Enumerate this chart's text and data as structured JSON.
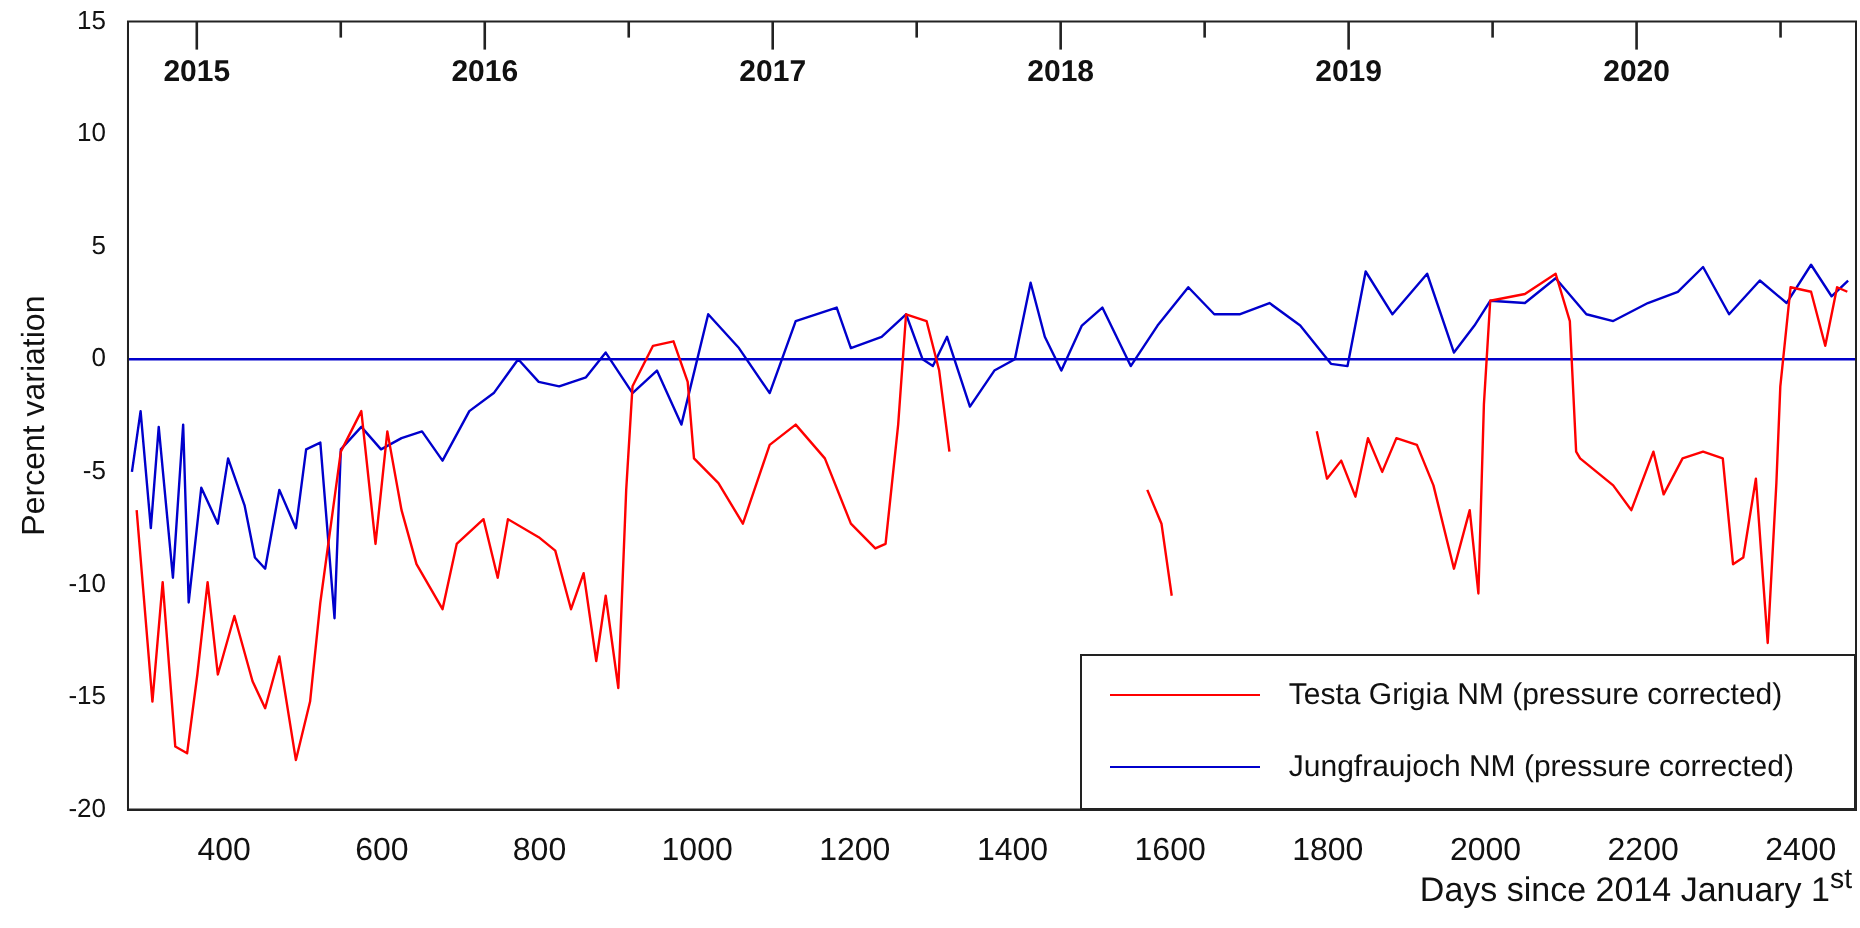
{
  "chart_data": {
    "type": "line",
    "xlabel": "Days since 2014 January 1$^{st}$",
    "ylabel": "Percent variation",
    "xlim": [
      278,
      2470
    ],
    "xticks": [
      400,
      600,
      800,
      1000,
      1200,
      1400,
      1600,
      1800,
      2000,
      2200,
      2400
    ],
    "x2lim": [
      2014.761,
      2020.762
    ],
    "x2ticks": [
      2015,
      {
        "value": 2015.5,
        "label": null
      },
      2016,
      {
        "value": 2016.5,
        "label": null
      },
      2017,
      {
        "value": 2017.5,
        "label": null
      },
      2018,
      {
        "value": 2018.5,
        "label": null
      },
      2019,
      {
        "value": 2019.5,
        "label": null
      },
      2020,
      {
        "value": 2020.5,
        "label": null
      }
    ],
    "ylim": [
      -20,
      15
    ],
    "yticks": [
      -20,
      -15,
      -10,
      -5,
      0,
      5,
      10,
      15
    ],
    "grid": false,
    "legend": "bottom right",
    "marker": "none",
    "line_style": "solid",
    "ref_lines": [
      {
        "axis": "y",
        "value": 0,
        "color": "#0000cc"
      }
    ],
    "series": [
      {
        "name": "Testa Grigia NM (pressure corrected)",
        "color": "#ff0000",
        "x": [
          289,
          309,
          322,
          338,
          353,
          366,
          379,
          392,
          413,
          436,
          452,
          470,
          491,
          509,
          522,
          548,
          574,
          592,
          607,
          625,
          644,
          677,
          695,
          729,
          747,
          760,
          799,
          820,
          840,
          856,
          872,
          884,
          900,
          910,
          918,
          944,
          970,
          988,
          996,
          1027,
          1058,
          1092,
          1125,
          1162,
          1195,
          1226,
          1239,
          1255,
          1265,
          1291,
          1307,
          1320,
          1450,
          1571,
          1589,
          1602,
          1700,
          1786,
          1799,
          1817,
          1835,
          1851,
          1869,
          1887,
          1913,
          1934,
          1960,
          1980,
          1991,
          1998,
          2006,
          2050,
          2089,
          2107,
          2115,
          2120,
          2162,
          2185,
          2213,
          2226,
          2250,
          2276,
          2301,
          2314,
          2327,
          2343,
          2353,
          2358,
          2369,
          2374,
          2387,
          2413,
          2431,
          2446,
          2459
        ],
        "values": [
          -6.7,
          -15.2,
          -9.9,
          -17.2,
          -17.5,
          -14.0,
          -9.9,
          -14.0,
          -11.4,
          -14.3,
          -15.5,
          -13.2,
          -17.8,
          -15.2,
          -10.8,
          -4.1,
          -2.3,
          -8.2,
          -3.2,
          -6.7,
          -9.1,
          -11.1,
          -8.2,
          -7.1,
          -9.7,
          -7.1,
          -7.9,
          -8.5,
          -11.1,
          -9.5,
          -13.4,
          -10.5,
          -14.6,
          -5.8,
          -1.2,
          0.6,
          0.8,
          -1.0,
          -4.4,
          -5.5,
          -7.3,
          -3.8,
          -2.9,
          -4.4,
          -7.3,
          -8.4,
          -8.2,
          -2.9,
          2.0,
          1.7,
          -0.5,
          -4.1,
          null,
          -5.8,
          -7.3,
          -10.5,
          null,
          -3.2,
          -5.3,
          -4.5,
          -6.1,
          -3.5,
          -5.0,
          -3.5,
          -3.8,
          -5.6,
          -9.3,
          -6.7,
          -10.4,
          -2.0,
          2.6,
          2.9,
          3.8,
          1.7,
          -4.1,
          -4.4,
          -5.6,
          -6.7,
          -4.1,
          -6.0,
          -4.4,
          -4.1,
          -4.4,
          -9.1,
          -8.8,
          -5.3,
          -10.2,
          -12.6,
          -5.5,
          -1.2,
          3.2,
          3.0,
          0.6,
          3.2,
          3.0
        ]
      },
      {
        "name": "Jungfraujoch NM (pressure corrected)",
        "color": "#0000cc",
        "x": [
          283,
          294,
          307,
          317,
          335,
          348,
          355,
          371,
          392,
          405,
          426,
          439,
          452,
          470,
          491,
          504,
          522,
          540,
          548,
          574,
          599,
          625,
          651,
          677,
          711,
          742,
          773,
          799,
          825,
          859,
          884,
          918,
          949,
          980,
          1014,
          1053,
          1092,
          1125,
          1177,
          1195,
          1234,
          1265,
          1286,
          1299,
          1317,
          1346,
          1377,
          1403,
          1423,
          1441,
          1462,
          1488,
          1514,
          1550,
          1584,
          1623,
          1656,
          1688,
          1726,
          1765,
          1804,
          1825,
          1848,
          1882,
          1926,
          1960,
          1986,
          2006,
          2050,
          2089,
          2128,
          2162,
          2206,
          2244,
          2276,
          2309,
          2348,
          2382,
          2413,
          2439,
          2460
        ],
        "values": [
          -5.0,
          -2.3,
          -7.5,
          -3.0,
          -9.7,
          -2.9,
          -10.8,
          -5.7,
          -7.3,
          -4.4,
          -6.5,
          -8.8,
          -9.3,
          -5.8,
          -7.5,
          -4.0,
          -3.7,
          -11.5,
          -4.0,
          -3.0,
          -4.0,
          -3.5,
          -3.2,
          -4.5,
          -2.3,
          -1.5,
          0,
          -1.0,
          -1.2,
          -0.8,
          0.3,
          -1.5,
          -0.5,
          -2.9,
          2.0,
          0.5,
          -1.5,
          1.7,
          2.3,
          0.5,
          1.0,
          2.0,
          0.0,
          -0.3,
          1.0,
          -2.1,
          -0.5,
          0.0,
          3.4,
          1.0,
          -0.5,
          1.5,
          2.3,
          -0.3,
          1.5,
          3.2,
          2.0,
          2.0,
          2.5,
          1.5,
          -0.2,
          -0.3,
          3.9,
          2.0,
          3.8,
          0.3,
          1.5,
          2.6,
          2.5,
          3.6,
          2.0,
          1.7,
          2.5,
          3.0,
          4.1,
          2.0,
          3.5,
          2.5,
          4.2,
          2.8,
          3.5
        ]
      }
    ]
  }
}
